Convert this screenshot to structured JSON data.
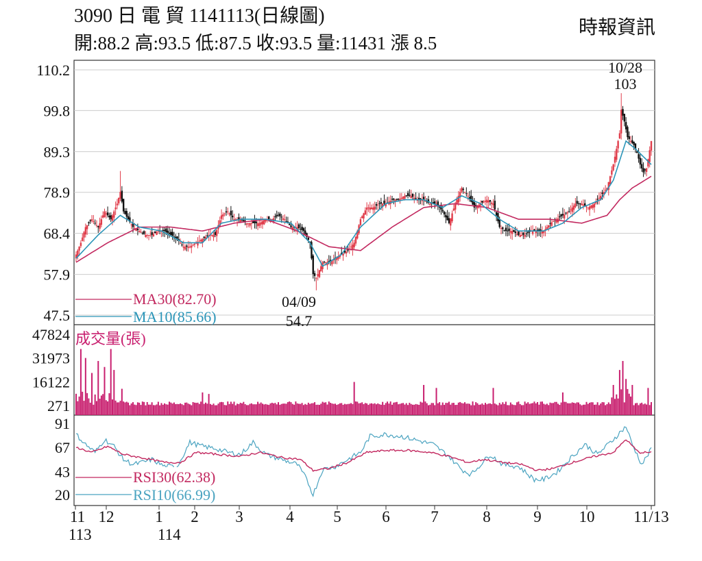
{
  "header": {
    "line1": "3090  日 電 貿 1141113(日線圖)",
    "line2": "開:88.2 高:93.5 低:87.5 收:93.5 量:11431 漲 8.5",
    "source": "時報資訊"
  },
  "colors": {
    "up_candle": "#e03c4a",
    "down_candle": "#111111",
    "ma30": "#c2285f",
    "ma10": "#2b95b8",
    "volume": "#c81e6e",
    "rsi30": "#c2285f",
    "rsi10": "#4aa3c0",
    "grid": "#cccccc"
  },
  "chart_data": [
    {
      "type": "candlestick",
      "panel": "price",
      "yticks": [
        "110.2",
        "99.8",
        "89.3",
        "78.9",
        "68.4",
        "57.9",
        "47.5"
      ],
      "ylim": [
        47.5,
        110.2
      ],
      "legend": [
        {
          "label": "MA30(82.70)",
          "series": "ma30"
        },
        {
          "label": "MA10(85.66)",
          "series": "ma10"
        }
      ],
      "annotations": [
        {
          "date": "10/28",
          "value": "103"
        },
        {
          "date": "04/09",
          "value": "54.7"
        }
      ],
      "shape_points": [
        [
          0,
          63
        ],
        [
          3,
          66
        ],
        [
          6,
          70
        ],
        [
          10,
          72
        ],
        [
          14,
          70
        ],
        [
          18,
          74
        ],
        [
          22,
          72
        ],
        [
          26,
          76
        ],
        [
          28,
          79
        ],
        [
          30,
          74
        ],
        [
          33,
          72
        ],
        [
          36,
          70
        ],
        [
          40,
          69
        ],
        [
          44,
          68
        ],
        [
          48,
          68
        ],
        [
          52,
          69
        ],
        [
          56,
          69
        ],
        [
          60,
          68
        ],
        [
          64,
          67
        ],
        [
          68,
          65
        ],
        [
          72,
          65
        ],
        [
          76,
          66
        ],
        [
          80,
          67
        ],
        [
          84,
          68
        ],
        [
          88,
          68
        ],
        [
          92,
          73
        ],
        [
          96,
          74
        ],
        [
          100,
          72
        ],
        [
          104,
          72
        ],
        [
          108,
          71
        ],
        [
          112,
          71
        ],
        [
          116,
          71
        ],
        [
          120,
          72
        ],
        [
          124,
          72
        ],
        [
          128,
          73
        ],
        [
          132,
          72
        ],
        [
          136,
          70
        ],
        [
          140,
          70
        ],
        [
          144,
          69
        ],
        [
          148,
          66
        ],
        [
          150,
          58
        ],
        [
          152,
          57
        ],
        [
          156,
          61
        ],
        [
          160,
          61
        ],
        [
          164,
          62
        ],
        [
          168,
          63
        ],
        [
          172,
          64
        ],
        [
          176,
          66
        ],
        [
          180,
          72
        ],
        [
          184,
          75
        ],
        [
          188,
          75
        ],
        [
          192,
          76
        ],
        [
          196,
          76
        ],
        [
          200,
          77
        ],
        [
          204,
          77
        ],
        [
          208,
          78
        ],
        [
          212,
          78
        ],
        [
          216,
          77
        ],
        [
          220,
          77
        ],
        [
          224,
          76
        ],
        [
          228,
          76
        ],
        [
          232,
          74
        ],
        [
          236,
          71
        ],
        [
          240,
          76
        ],
        [
          244,
          80
        ],
        [
          248,
          78
        ],
        [
          252,
          75
        ],
        [
          256,
          76
        ],
        [
          260,
          77
        ],
        [
          264,
          76
        ],
        [
          268,
          70
        ],
        [
          272,
          69
        ],
        [
          276,
          69
        ],
        [
          280,
          68
        ],
        [
          284,
          68
        ],
        [
          288,
          69
        ],
        [
          292,
          69
        ],
        [
          296,
          69
        ],
        [
          300,
          71
        ],
        [
          304,
          72
        ],
        [
          308,
          73
        ],
        [
          312,
          74
        ],
        [
          316,
          76
        ],
        [
          320,
          76
        ],
        [
          324,
          75
        ],
        [
          328,
          76
        ],
        [
          332,
          78
        ],
        [
          336,
          80
        ],
        [
          340,
          86
        ],
        [
          342,
          90
        ],
        [
          344,
          94
        ],
        [
          345,
          100
        ],
        [
          347,
          97
        ],
        [
          349,
          93
        ],
        [
          351,
          92
        ],
        [
          353,
          91
        ],
        [
          355,
          89
        ],
        [
          357,
          86
        ],
        [
          359,
          84
        ],
        [
          361,
          85
        ],
        [
          364,
          92
        ]
      ],
      "ma30_shape": [
        [
          0,
          61
        ],
        [
          20,
          66
        ],
        [
          40,
          70
        ],
        [
          60,
          70
        ],
        [
          80,
          69
        ],
        [
          100,
          71
        ],
        [
          120,
          72
        ],
        [
          140,
          69
        ],
        [
          160,
          65
        ],
        [
          180,
          64
        ],
        [
          200,
          70
        ],
        [
          220,
          75
        ],
        [
          240,
          76
        ],
        [
          260,
          75
        ],
        [
          280,
          72
        ],
        [
          300,
          72
        ],
        [
          320,
          71
        ],
        [
          336,
          73
        ],
        [
          344,
          77
        ],
        [
          352,
          80
        ],
        [
          364,
          83
        ]
      ],
      "ma10_shape": [
        [
          0,
          62
        ],
        [
          14,
          68
        ],
        [
          28,
          73
        ],
        [
          40,
          70
        ],
        [
          54,
          69
        ],
        [
          68,
          66
        ],
        [
          80,
          66
        ],
        [
          92,
          71
        ],
        [
          104,
          72
        ],
        [
          120,
          72
        ],
        [
          136,
          71
        ],
        [
          148,
          66
        ],
        [
          156,
          60
        ],
        [
          168,
          63
        ],
        [
          180,
          70
        ],
        [
          196,
          76
        ],
        [
          208,
          77
        ],
        [
          220,
          77
        ],
        [
          232,
          75
        ],
        [
          244,
          78
        ],
        [
          256,
          76
        ],
        [
          268,
          72
        ],
        [
          280,
          69
        ],
        [
          296,
          69
        ],
        [
          308,
          71
        ],
        [
          320,
          75
        ],
        [
          332,
          77
        ],
        [
          340,
          82
        ],
        [
          348,
          92
        ],
        [
          354,
          90
        ],
        [
          364,
          86
        ]
      ]
    },
    {
      "type": "bar",
      "panel": "volume",
      "title": "成交量(張)",
      "yticks": [
        "47824",
        "31973",
        "16122",
        "271"
      ],
      "ylim": [
        271,
        47824
      ],
      "spikes": [
        [
          3,
          38000
        ],
        [
          6,
          32000
        ],
        [
          10,
          22000
        ],
        [
          14,
          30000
        ],
        [
          18,
          26000
        ],
        [
          22,
          38000
        ],
        [
          24,
          24000
        ],
        [
          80,
          9000
        ],
        [
          84,
          8000
        ],
        [
          176,
          16000
        ],
        [
          220,
          14000
        ],
        [
          228,
          12000
        ],
        [
          264,
          12000
        ],
        [
          308,
          9000
        ],
        [
          340,
          14000
        ],
        [
          344,
          24000
        ],
        [
          346,
          30000
        ],
        [
          348,
          18000
        ],
        [
          352,
          14000
        ],
        [
          362,
          12000
        ]
      ]
    },
    {
      "type": "line",
      "panel": "rsi",
      "yticks": [
        "91",
        "67",
        "43",
        "20"
      ],
      "ylim": [
        20,
        91
      ],
      "legend": [
        {
          "label": "RSI30(62.38)",
          "series": "rsi30"
        },
        {
          "label": "RSI10(66.99)",
          "series": "rsi10"
        }
      ],
      "rsi10_shape": [
        [
          0,
          80
        ],
        [
          6,
          70
        ],
        [
          12,
          62
        ],
        [
          18,
          75
        ],
        [
          24,
          68
        ],
        [
          30,
          55
        ],
        [
          36,
          50
        ],
        [
          42,
          52
        ],
        [
          48,
          55
        ],
        [
          56,
          48
        ],
        [
          64,
          48
        ],
        [
          72,
          72
        ],
        [
          80,
          68
        ],
        [
          88,
          66
        ],
        [
          96,
          62
        ],
        [
          104,
          60
        ],
        [
          112,
          72
        ],
        [
          120,
          60
        ],
        [
          130,
          55
        ],
        [
          140,
          50
        ],
        [
          146,
          35
        ],
        [
          150,
          20
        ],
        [
          156,
          45
        ],
        [
          164,
          48
        ],
        [
          172,
          55
        ],
        [
          180,
          62
        ],
        [
          186,
          78
        ],
        [
          196,
          80
        ],
        [
          206,
          78
        ],
        [
          216,
          74
        ],
        [
          226,
          70
        ],
        [
          236,
          58
        ],
        [
          244,
          45
        ],
        [
          250,
          40
        ],
        [
          256,
          50
        ],
        [
          262,
          60
        ],
        [
          270,
          50
        ],
        [
          280,
          48
        ],
        [
          290,
          35
        ],
        [
          296,
          35
        ],
        [
          304,
          42
        ],
        [
          312,
          55
        ],
        [
          322,
          70
        ],
        [
          330,
          60
        ],
        [
          340,
          75
        ],
        [
          348,
          88
        ],
        [
          352,
          70
        ],
        [
          358,
          50
        ],
        [
          364,
          65
        ]
      ],
      "rsi30_shape": [
        [
          0,
          67
        ],
        [
          10,
          62
        ],
        [
          20,
          68
        ],
        [
          30,
          60
        ],
        [
          44,
          56
        ],
        [
          56,
          52
        ],
        [
          66,
          52
        ],
        [
          76,
          62
        ],
        [
          90,
          60
        ],
        [
          104,
          58
        ],
        [
          116,
          62
        ],
        [
          130,
          57
        ],
        [
          142,
          55
        ],
        [
          150,
          44
        ],
        [
          160,
          46
        ],
        [
          172,
          52
        ],
        [
          184,
          62
        ],
        [
          196,
          64
        ],
        [
          210,
          64
        ],
        [
          224,
          62
        ],
        [
          236,
          58
        ],
        [
          248,
          52
        ],
        [
          258,
          55
        ],
        [
          270,
          52
        ],
        [
          282,
          50
        ],
        [
          292,
          44
        ],
        [
          302,
          46
        ],
        [
          314,
          52
        ],
        [
          328,
          58
        ],
        [
          340,
          62
        ],
        [
          348,
          75
        ],
        [
          356,
          62
        ],
        [
          364,
          62
        ]
      ]
    }
  ],
  "x_axis": {
    "labels": [
      {
        "top": "11",
        "bottom": "113"
      },
      {
        "top": "12",
        "bottom": ""
      },
      {
        "top": "1",
        "bottom": "114"
      },
      {
        "top": "2",
        "bottom": ""
      },
      {
        "top": "3",
        "bottom": ""
      },
      {
        "top": "4",
        "bottom": ""
      },
      {
        "top": "5",
        "bottom": ""
      },
      {
        "top": "6",
        "bottom": ""
      },
      {
        "top": "7",
        "bottom": ""
      },
      {
        "top": "8",
        "bottom": ""
      },
      {
        "top": "9",
        "bottom": ""
      },
      {
        "top": "10",
        "bottom": ""
      },
      {
        "top": "11/13",
        "bottom": ""
      }
    ]
  }
}
